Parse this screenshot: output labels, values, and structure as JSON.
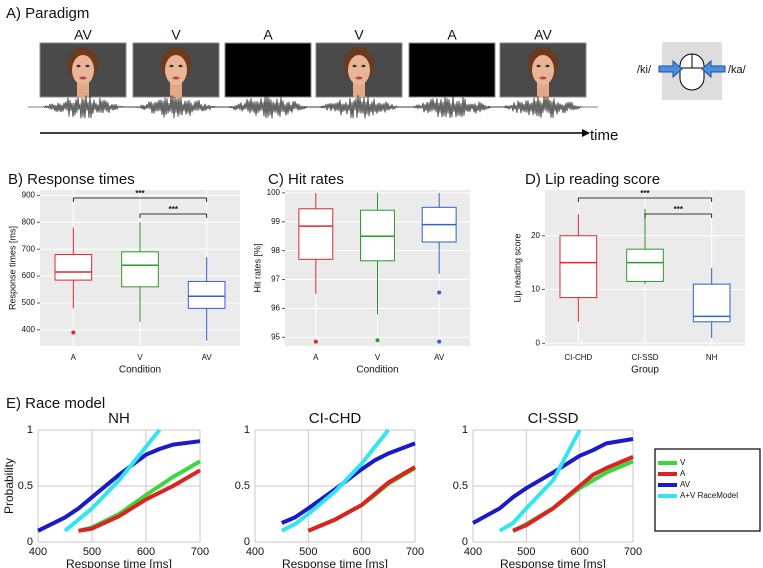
{
  "paradigm": {
    "title": "A) Paradigm",
    "frames": [
      "AV",
      "V",
      "A",
      "V",
      "A",
      "AV"
    ],
    "left_response": "/ki/",
    "right_response": "/ka/",
    "axis": "time"
  },
  "panel_e_title": "E) Race model",
  "chart_data": [
    {
      "type": "box",
      "title": "B) Response times",
      "ylabel": "Response times [ms]",
      "xlabel": "Condition",
      "categories": [
        "A",
        "V",
        "AV"
      ],
      "colors": [
        "#e0282e",
        "#2a9a2a",
        "#2f5fd0"
      ],
      "boxes": [
        {
          "low": 480,
          "q1": 585,
          "median": 615,
          "q3": 680,
          "high": 780,
          "outliers": [
            390
          ]
        },
        {
          "low": 430,
          "q1": 560,
          "median": 640,
          "q3": 690,
          "high": 800,
          "outliers": []
        },
        {
          "low": 360,
          "q1": 480,
          "median": 525,
          "q3": 580,
          "high": 670,
          "outliers": []
        }
      ],
      "ylim": [
        340,
        920
      ],
      "yticks": [
        400,
        500,
        600,
        700,
        800,
        900
      ],
      "grid": true,
      "brackets": [
        {
          "label": "***",
          "pair": [
            "A",
            "AV"
          ]
        },
        {
          "label": "***",
          "pair": [
            "V",
            "AV"
          ]
        }
      ]
    },
    {
      "type": "box",
      "title": "C) Hit rates",
      "ylabel": "Hit rates [%]",
      "xlabel": "Condition",
      "categories": [
        "A",
        "V",
        "AV"
      ],
      "colors": [
        "#e0282e",
        "#2a9a2a",
        "#2f5fd0"
      ],
      "boxes": [
        {
          "low": 96.5,
          "q1": 97.7,
          "median": 98.85,
          "q3": 99.45,
          "high": 100,
          "outliers": [
            94.85
          ]
        },
        {
          "low": 95.8,
          "q1": 97.65,
          "median": 98.5,
          "q3": 99.4,
          "high": 100,
          "outliers": [
            94.9
          ]
        },
        {
          "low": 97.2,
          "q1": 98.3,
          "median": 98.9,
          "q3": 99.5,
          "high": 100,
          "outliers": [
            96.55,
            94.85
          ]
        }
      ],
      "ylim": [
        94.7,
        100.1
      ],
      "yticks": [
        95,
        96,
        97,
        98,
        99,
        100
      ],
      "grid": true,
      "brackets": []
    },
    {
      "type": "box",
      "title": "D) Lip reading score",
      "ylabel": "Lip reading score",
      "xlabel": "Group",
      "categories": [
        "CI-CHD",
        "CI-SSD",
        "NH"
      ],
      "colors": [
        "#e0282e",
        "#2a9a2a",
        "#2f5fd0"
      ],
      "boxes": [
        {
          "low": 4,
          "q1": 8.5,
          "median": 15,
          "q3": 20,
          "high": 24,
          "outliers": []
        },
        {
          "low": 11,
          "q1": 11.5,
          "median": 15,
          "q3": 17.5,
          "high": 25,
          "outliers": []
        },
        {
          "low": 1,
          "q1": 4,
          "median": 5,
          "q3": 11,
          "high": 14,
          "outliers": []
        }
      ],
      "ylim": [
        -0.5,
        28.5
      ],
      "yticks": [
        0,
        10,
        20
      ],
      "grid": true,
      "brackets": [
        {
          "label": "***",
          "pair": [
            "CI-CHD",
            "NH"
          ]
        },
        {
          "label": "***",
          "pair": [
            "CI-SSD",
            "NH"
          ]
        }
      ]
    },
    {
      "type": "line",
      "title": "NH",
      "xlabel": "Response time [ms]",
      "ylabel": "Probability",
      "x": [
        400,
        450,
        475,
        500,
        550,
        600,
        625,
        650,
        700
      ],
      "series": [
        {
          "name": "V",
          "color": "#3ed63e",
          "values": [
            null,
            null,
            0.1,
            0.13,
            0.25,
            0.42,
            0.5,
            0.58,
            0.72
          ]
        },
        {
          "name": "A",
          "color": "#dd2222",
          "values": [
            null,
            null,
            0.1,
            0.12,
            0.23,
            0.38,
            0.44,
            0.5,
            0.64
          ]
        },
        {
          "name": "AV",
          "color": "#1a1ac8",
          "values": [
            0.1,
            0.22,
            0.3,
            0.4,
            0.6,
            0.78,
            0.83,
            0.87,
            0.9
          ]
        },
        {
          "name": "A+V RaceModel",
          "color": "#33e6ee",
          "values": [
            null,
            0.1,
            0.2,
            0.3,
            0.55,
            0.85,
            1,
            null,
            null
          ]
        }
      ],
      "xlim": [
        400,
        700
      ],
      "xticks": [
        400,
        500,
        600,
        700
      ],
      "ylim": [
        0,
        1
      ],
      "yticks": [
        0,
        0.5,
        1
      ],
      "grid": true
    },
    {
      "type": "line",
      "title": "CI-CHD",
      "xlabel": "Response time [ms]",
      "x": [
        400,
        450,
        475,
        500,
        550,
        600,
        625,
        650,
        700
      ],
      "series": [
        {
          "name": "V",
          "color": "#3ed63e",
          "values": [
            null,
            null,
            null,
            0.1,
            0.2,
            0.33,
            0.42,
            0.52,
            0.66
          ]
        },
        {
          "name": "A",
          "color": "#dd2222",
          "values": [
            null,
            null,
            null,
            0.1,
            0.2,
            0.33,
            0.43,
            0.53,
            0.67
          ]
        },
        {
          "name": "AV",
          "color": "#1a1ac8",
          "values": [
            null,
            0.17,
            0.22,
            0.3,
            0.47,
            0.65,
            0.73,
            0.79,
            0.88
          ]
        },
        {
          "name": "A+V RaceModel",
          "color": "#33e6ee",
          "values": [
            null,
            0.1,
            0.16,
            0.25,
            0.45,
            0.7,
            0.85,
            1,
            null
          ]
        }
      ],
      "xlim": [
        400,
        700
      ],
      "xticks": [
        400,
        500,
        600,
        700
      ],
      "ylim": [
        0,
        1
      ],
      "yticks": [
        0,
        0.5,
        1
      ],
      "grid": true
    },
    {
      "type": "line",
      "title": "CI-SSD",
      "xlabel": "Response time [ms]",
      "x": [
        400,
        450,
        475,
        500,
        550,
        600,
        625,
        650,
        700
      ],
      "series": [
        {
          "name": "V",
          "color": "#3ed63e",
          "values": [
            null,
            null,
            0.1,
            0.16,
            0.3,
            0.48,
            0.55,
            0.62,
            0.72
          ]
        },
        {
          "name": "A",
          "color": "#dd2222",
          "values": [
            null,
            null,
            0.1,
            0.15,
            0.3,
            0.5,
            0.6,
            0.66,
            0.76
          ]
        },
        {
          "name": "AV",
          "color": "#1a1ac8",
          "values": [
            0.17,
            0.3,
            0.4,
            0.48,
            0.62,
            0.77,
            0.82,
            0.88,
            0.92
          ]
        },
        {
          "name": "A+V RaceModel",
          "color": "#33e6ee",
          "values": [
            null,
            0.1,
            0.17,
            0.3,
            0.55,
            1,
            null,
            null,
            null
          ]
        }
      ],
      "xlim": [
        400,
        700
      ],
      "xticks": [
        400,
        500,
        600,
        700
      ],
      "ylim": [
        0,
        1
      ],
      "yticks": [
        0,
        0.5,
        1
      ],
      "grid": true,
      "legend": "right"
    }
  ]
}
